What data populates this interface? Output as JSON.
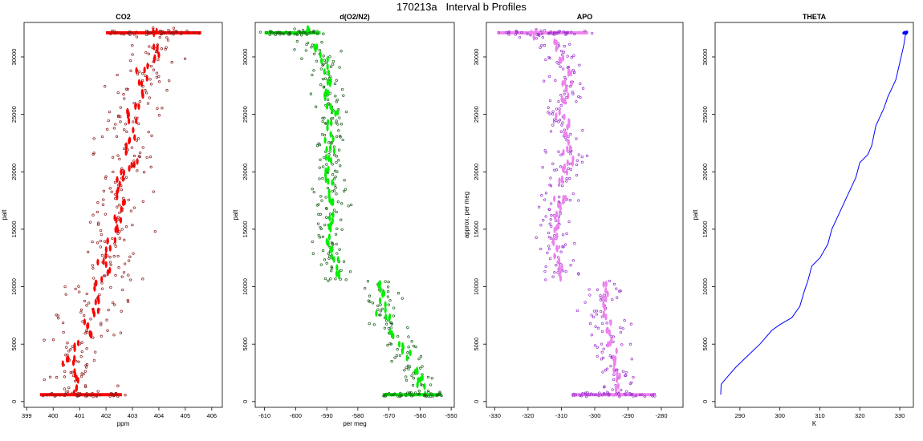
{
  "figure_title": "170213a   Interval b Profiles",
  "chart_data": [
    {
      "id": "co2",
      "type": "scatter",
      "title": "CO2",
      "xlabel": "ppm",
      "ylabel": "palt",
      "xlim": [
        398.9,
        406.4
      ],
      "ylim": [
        -500,
        33000
      ],
      "xticks": [
        399,
        400,
        401,
        402,
        403,
        404,
        405,
        406
      ],
      "xtick_labels": [
        "399",
        "400",
        "401",
        "402",
        "403",
        "404",
        "405",
        "406"
      ],
      "yticks": [
        0,
        5000,
        10000,
        15000,
        20000,
        25000,
        30000
      ],
      "ytick_labels": [
        "0",
        "5000",
        "10000",
        "15000",
        "20000",
        "25000",
        "30000"
      ],
      "point_color": "#ff0000",
      "outline_color": "#8b1a1a",
      "line_color": "",
      "profile": [
        [
          32100,
          403.9,
          403.9,
          0.9
        ],
        [
          31000,
          404.0,
          404.1,
          0.9
        ],
        [
          30000,
          403.8,
          403.8,
          0.9
        ],
        [
          29000,
          403.6,
          403.3,
          0.9
        ],
        [
          28000,
          403.4,
          403.4,
          0.9
        ],
        [
          27000,
          403.2,
          403.5,
          0.9
        ],
        [
          26000,
          403.2,
          403.3,
          0.9
        ],
        [
          25000,
          403.0,
          403.0,
          0.9
        ],
        [
          24000,
          402.9,
          403.1,
          0.9
        ],
        [
          23000,
          402.8,
          403.0,
          0.9
        ],
        [
          22000,
          402.7,
          402.8,
          0.9
        ],
        [
          21000,
          402.9,
          403.3,
          0.9
        ],
        [
          20000,
          402.6,
          402.9,
          0.9
        ],
        [
          19000,
          402.4,
          402.7,
          0.9
        ],
        [
          18000,
          402.4,
          402.6,
          0.9
        ],
        [
          17000,
          402.3,
          402.9,
          0.9
        ],
        [
          16000,
          402.4,
          402.3,
          0.9
        ],
        [
          15000,
          402.3,
          402.4,
          0.9
        ],
        [
          14000,
          402.1,
          402.2,
          0.9
        ],
        [
          13000,
          401.9,
          402.3,
          0.9
        ],
        [
          12000,
          401.8,
          402.0,
          0.9
        ],
        [
          11000,
          401.8,
          402.1,
          0.9
        ],
        [
          10000,
          401.6,
          401.7,
          0.9
        ],
        [
          9000,
          401.5,
          401.8,
          0.9
        ],
        [
          8000,
          401.4,
          401.7,
          0.9
        ],
        [
          7000,
          401.2,
          401.5,
          0.9
        ],
        [
          6000,
          401.3,
          401.6,
          0.9
        ],
        [
          5000,
          400.8,
          401.1,
          0.9
        ],
        [
          4000,
          400.6,
          400.9,
          0.9
        ],
        [
          3000,
          400.6,
          400.8,
          0.9
        ],
        [
          2000,
          400.8,
          401.0,
          0.9
        ],
        [
          1000,
          400.7,
          400.9,
          0.9
        ]
      ],
      "bottom_band": [
        600,
        399.5,
        402.6
      ],
      "top_band": [
        32100,
        402.0,
        405.6
      ]
    },
    {
      "id": "o2n2",
      "type": "scatter",
      "title": "d(O2/N2)",
      "xlabel": "per meg",
      "ylabel": "palt",
      "xlim": [
        -613,
        -549
      ],
      "ylim": [
        -500,
        33000
      ],
      "xticks": [
        -610,
        -600,
        -590,
        -580,
        -570,
        -560,
        -550
      ],
      "xtick_labels": [
        "-610",
        "-600",
        "-590",
        "-580",
        "-570",
        "-560",
        "-550"
      ],
      "yticks": [
        0,
        5000,
        10000,
        15000,
        20000,
        25000,
        30000
      ],
      "ytick_labels": [
        "0",
        "5000",
        "10000",
        "15000",
        "20000",
        "25000",
        "30000"
      ],
      "point_color": "#00ee00",
      "outline_color": "#1a5e1a",
      "line_color": "",
      "profile": [
        [
          32100,
          -596,
          -596,
          4
        ],
        [
          31000,
          -594,
          -594,
          4
        ],
        [
          30000,
          -592,
          -590,
          4
        ],
        [
          29000,
          -591,
          -588,
          4
        ],
        [
          28000,
          -592,
          -587,
          4
        ],
        [
          27000,
          -591,
          -589,
          4
        ],
        [
          26000,
          -590,
          -588,
          4
        ],
        [
          25000,
          -588,
          -586,
          4
        ],
        [
          24000,
          -590,
          -589,
          4
        ],
        [
          23000,
          -590,
          -586,
          4
        ],
        [
          22000,
          -590,
          -588,
          4
        ],
        [
          21000,
          -590,
          -589,
          4
        ],
        [
          20000,
          -589,
          -591,
          4
        ],
        [
          19000,
          -588,
          -590,
          4
        ],
        [
          18000,
          -589,
          -589,
          4
        ],
        [
          17000,
          -589,
          -587,
          4
        ],
        [
          16000,
          -589,
          -588,
          4
        ],
        [
          15000,
          -589,
          -589,
          4
        ],
        [
          14000,
          -590,
          -589,
          4
        ],
        [
          13000,
          -589,
          -588,
          4
        ],
        [
          12000,
          -588,
          -585,
          4
        ],
        [
          11000,
          -587,
          -585,
          4
        ],
        [
          10000,
          -573,
          -573,
          4
        ],
        [
          9000,
          -573,
          -571,
          4
        ],
        [
          8000,
          -575,
          -570,
          4
        ],
        [
          7000,
          -571,
          -569,
          4
        ],
        [
          6000,
          -570,
          -568,
          4
        ],
        [
          5000,
          -567,
          -565,
          4
        ],
        [
          4000,
          -565,
          -563,
          4
        ],
        [
          3000,
          -562,
          -561,
          4
        ],
        [
          2000,
          -561,
          -559,
          4
        ],
        [
          1000,
          -561,
          -558,
          4
        ]
      ],
      "bottom_band": [
        600,
        -572,
        -553
      ],
      "top_band": [
        32100,
        -610,
        -592
      ]
    },
    {
      "id": "apo",
      "type": "scatter",
      "title": "APO",
      "xlabel": "",
      "ylabel": "approx. per meg",
      "xlim": [
        -332.5,
        -273.5
      ],
      "ylim": [
        -500,
        33000
      ],
      "xticks": [
        -330,
        -320,
        -310,
        -300,
        -290,
        -280
      ],
      "xtick_labels": [
        "-330",
        "-320",
        "-310",
        "-300",
        "-290",
        "-280"
      ],
      "yticks": [
        0,
        5000,
        10000,
        15000,
        20000,
        25000,
        30000
      ],
      "ytick_labels": [
        "0",
        "5000",
        "10000",
        "15000",
        "20000",
        "25000",
        "30000"
      ],
      "point_color": "#ee82ee",
      "outline_color": "#9932cc",
      "line_color": "",
      "profile": [
        [
          32100,
          -318,
          -318,
          4.5
        ],
        [
          31000,
          -312,
          -312,
          4.5
        ],
        [
          30000,
          -310,
          -310,
          4.5
        ],
        [
          29000,
          -309,
          -308,
          4.5
        ],
        [
          28000,
          -309,
          -307,
          4.5
        ],
        [
          27000,
          -309,
          -308,
          4.5
        ],
        [
          26000,
          -310,
          -308,
          4.5
        ],
        [
          25000,
          -311,
          -309,
          4.5
        ],
        [
          24000,
          -309,
          -307,
          4.5
        ],
        [
          23000,
          -309,
          -308,
          4.5
        ],
        [
          22000,
          -310,
          -308,
          4.5
        ],
        [
          21000,
          -309,
          -306,
          4.5
        ],
        [
          20000,
          -310,
          -309,
          4.5
        ],
        [
          19000,
          -311,
          -309,
          4.5
        ],
        [
          18000,
          -311,
          -309,
          4.5
        ],
        [
          17000,
          -311,
          -310,
          4.5
        ],
        [
          16000,
          -311,
          -311,
          4.5
        ],
        [
          15000,
          -312,
          -312,
          4.5
        ],
        [
          14000,
          -312,
          -312,
          4.5
        ],
        [
          13000,
          -311,
          -311,
          4.5
        ],
        [
          12000,
          -311,
          -310,
          4.5
        ],
        [
          11000,
          -311,
          -310,
          4.5
        ],
        [
          10000,
          -297,
          -297,
          4.5
        ],
        [
          9000,
          -297,
          -296,
          4.5
        ],
        [
          8000,
          -297,
          -296,
          4.5
        ],
        [
          7000,
          -296,
          -296,
          4.5
        ],
        [
          6000,
          -296,
          -296,
          4.5
        ],
        [
          5000,
          -295,
          -295,
          4.5
        ],
        [
          4000,
          -294,
          -294,
          4.5
        ],
        [
          3000,
          -294,
          -293,
          4.5
        ],
        [
          2000,
          -293,
          -293,
          4.5
        ],
        [
          1000,
          -293,
          -293,
          4.5
        ]
      ],
      "bottom_band": [
        600,
        -307,
        -282
      ],
      "top_band": [
        32100,
        -329,
        -302
      ]
    },
    {
      "id": "theta",
      "type": "line",
      "title": "THETA",
      "xlabel": "K",
      "ylabel": "palt",
      "xlim": [
        283.8,
        333.4
      ],
      "ylim": [
        -500,
        33000
      ],
      "xticks": [
        290,
        300,
        310,
        320,
        330
      ],
      "xtick_labels": [
        "290",
        "300",
        "310",
        "320",
        "330"
      ],
      "yticks": [
        0,
        5000,
        10000,
        15000,
        20000,
        25000,
        30000
      ],
      "ytick_labels": [
        "0",
        "5000",
        "10000",
        "15000",
        "20000",
        "25000",
        "30000"
      ],
      "point_color": "#0000ff",
      "outline_color": "#0000ff",
      "line_color": "#0000ff",
      "line": [
        [
          285.2,
          600
        ],
        [
          285.3,
          1500
        ],
        [
          287,
          2200
        ],
        [
          289,
          3000
        ],
        [
          292,
          4000
        ],
        [
          295,
          5000
        ],
        [
          298,
          6200
        ],
        [
          300,
          6700
        ],
        [
          303,
          7300
        ],
        [
          305,
          8300
        ],
        [
          306,
          9500
        ],
        [
          307,
          10500
        ],
        [
          308,
          11800
        ],
        [
          310,
          12500
        ],
        [
          312,
          13700
        ],
        [
          313,
          15000
        ],
        [
          315,
          16500
        ],
        [
          317,
          18000
        ],
        [
          319,
          19500
        ],
        [
          320,
          20800
        ],
        [
          322,
          21500
        ],
        [
          323,
          22300
        ],
        [
          324,
          24000
        ],
        [
          326,
          25500
        ],
        [
          327,
          26500
        ],
        [
          329,
          28000
        ],
        [
          330,
          29500
        ],
        [
          331,
          31000
        ],
        [
          331.5,
          32100
        ]
      ]
    }
  ]
}
